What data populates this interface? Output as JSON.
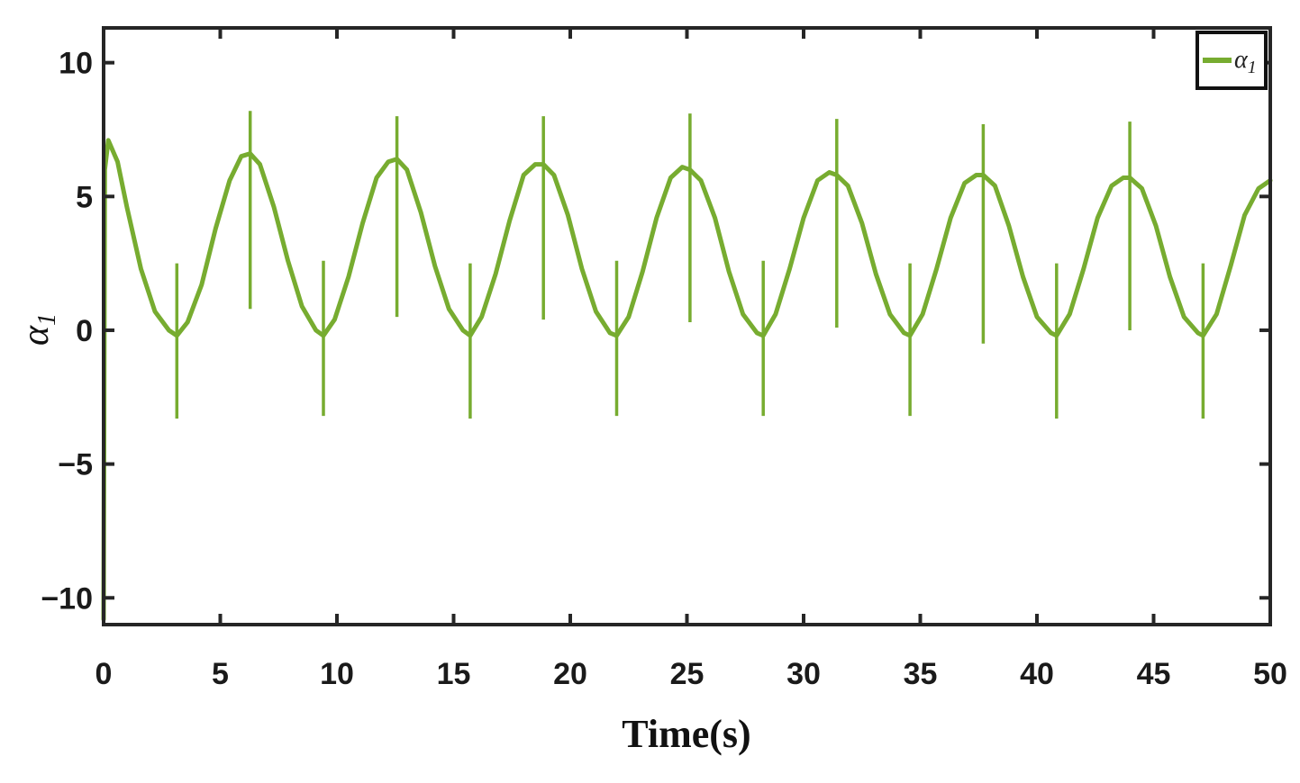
{
  "chart_data": {
    "type": "line",
    "title": "",
    "xlabel": "Time(s)",
    "ylabel_symbol": "α",
    "ylabel_subscript": "1",
    "xlim": [
      0,
      50
    ],
    "ylim": [
      -11,
      11.3
    ],
    "xticks": [
      0,
      5,
      10,
      15,
      20,
      25,
      30,
      35,
      40,
      45,
      50
    ],
    "yticks": [
      -10,
      -5,
      0,
      5,
      10
    ],
    "ytick_labels": [
      "−10",
      "−5",
      "0",
      "5",
      "10"
    ],
    "grid": false,
    "legend_position": "top-right",
    "series": [
      {
        "name_symbol": "α",
        "name_subscript": "1",
        "color": "#77ac30",
        "x": [
          0,
          0.05,
          0.2,
          0.6,
          1.0,
          1.6,
          2.2,
          2.8,
          3.14,
          3.6,
          4.2,
          4.8,
          5.4,
          5.9,
          6.28,
          6.7,
          7.3,
          7.9,
          8.5,
          9.1,
          9.42,
          9.9,
          10.5,
          11.1,
          11.7,
          12.2,
          12.57,
          13.0,
          13.6,
          14.2,
          14.8,
          15.4,
          15.71,
          16.2,
          16.8,
          17.4,
          18.0,
          18.5,
          18.85,
          19.3,
          19.9,
          20.5,
          21.1,
          21.7,
          21.99,
          22.5,
          23.1,
          23.7,
          24.3,
          24.8,
          25.13,
          25.6,
          26.2,
          26.8,
          27.4,
          28.0,
          28.27,
          28.8,
          29.4,
          30.0,
          30.6,
          31.1,
          31.42,
          31.9,
          32.5,
          33.1,
          33.7,
          34.3,
          34.56,
          35.1,
          35.7,
          36.3,
          36.9,
          37.4,
          37.7,
          38.2,
          38.8,
          39.4,
          40.0,
          40.6,
          40.84,
          41.4,
          42.0,
          42.6,
          43.2,
          43.7,
          43.98,
          44.5,
          45.1,
          45.7,
          46.3,
          46.9,
          47.12,
          47.7,
          48.3,
          48.9,
          49.5,
          50
        ],
        "y": [
          -10.8,
          6.0,
          7.1,
          6.3,
          4.6,
          2.3,
          0.7,
          0.0,
          -0.2,
          0.3,
          1.7,
          3.8,
          5.6,
          6.5,
          6.6,
          6.2,
          4.6,
          2.6,
          0.9,
          0.0,
          -0.2,
          0.4,
          2.0,
          4.0,
          5.7,
          6.3,
          6.4,
          6.0,
          4.4,
          2.4,
          0.8,
          0.0,
          -0.2,
          0.5,
          2.1,
          4.1,
          5.8,
          6.2,
          6.2,
          5.8,
          4.3,
          2.3,
          0.7,
          -0.1,
          -0.2,
          0.5,
          2.2,
          4.2,
          5.7,
          6.1,
          6.0,
          5.6,
          4.2,
          2.2,
          0.6,
          -0.1,
          -0.2,
          0.6,
          2.3,
          4.2,
          5.6,
          5.9,
          5.8,
          5.4,
          4.0,
          2.1,
          0.6,
          -0.1,
          -0.2,
          0.6,
          2.3,
          4.2,
          5.5,
          5.8,
          5.8,
          5.4,
          3.9,
          2.0,
          0.5,
          -0.1,
          -0.2,
          0.6,
          2.3,
          4.2,
          5.4,
          5.7,
          5.7,
          5.3,
          3.9,
          2.0,
          0.5,
          -0.1,
          -0.2,
          0.6,
          2.4,
          4.3,
          5.3,
          5.6
        ]
      }
    ],
    "spikes": [
      {
        "x": 3.14,
        "high": 2.5,
        "low": -3.3
      },
      {
        "x": 6.28,
        "high": 8.2,
        "low": 0.8
      },
      {
        "x": 9.42,
        "high": 2.6,
        "low": -3.2
      },
      {
        "x": 12.57,
        "high": 8.0,
        "low": 0.5
      },
      {
        "x": 15.71,
        "high": 2.5,
        "low": -3.3
      },
      {
        "x": 18.85,
        "high": 8.0,
        "low": 0.4
      },
      {
        "x": 21.99,
        "high": 2.6,
        "low": -3.2
      },
      {
        "x": 25.13,
        "high": 8.1,
        "low": 0.3
      },
      {
        "x": 28.27,
        "high": 2.6,
        "low": -3.2
      },
      {
        "x": 31.42,
        "high": 7.9,
        "low": 0.1
      },
      {
        "x": 34.56,
        "high": 2.5,
        "low": -3.2
      },
      {
        "x": 37.7,
        "high": 7.7,
        "low": -0.5
      },
      {
        "x": 40.84,
        "high": 2.5,
        "low": -3.3
      },
      {
        "x": 43.98,
        "high": 7.8,
        "low": 0.0
      },
      {
        "x": 47.12,
        "high": 2.5,
        "low": -3.3
      }
    ]
  }
}
